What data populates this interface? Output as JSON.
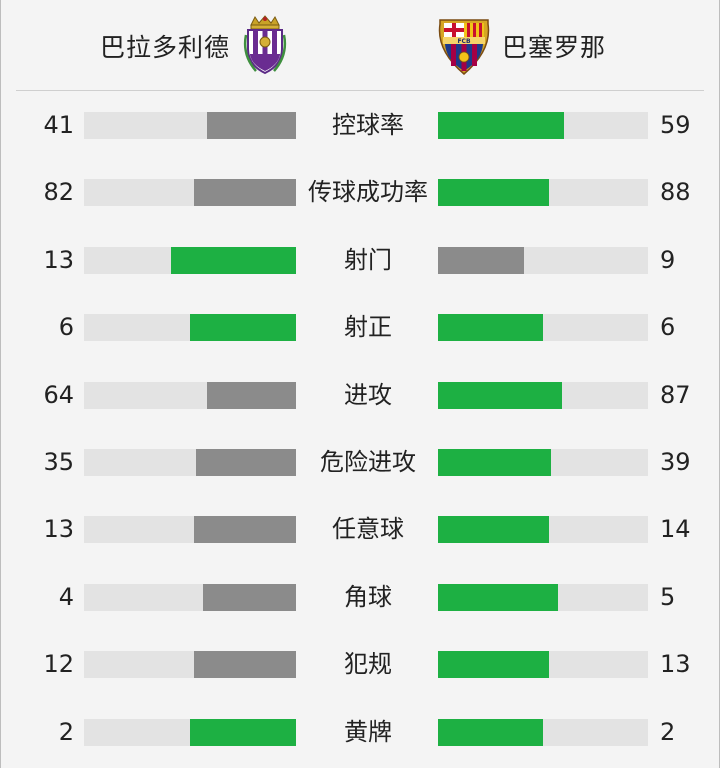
{
  "header": {
    "home_team": "巴拉多利德",
    "away_team": "巴塞罗那",
    "home_crest_icon": "real-valladolid-crest-icon",
    "away_crest_icon": "fc-barcelona-crest-icon",
    "away_crest_text": "FCB"
  },
  "colors": {
    "leader": "#1db043",
    "trailer": "#8b8b8b",
    "track": "#e3e3e3"
  },
  "stats": [
    {
      "label": "控球率",
      "home": "41",
      "away": "59",
      "home_fill": 0.42,
      "away_fill": 0.6,
      "home_color": "gray",
      "away_color": "green"
    },
    {
      "label": "传球成功率",
      "home": "82",
      "away": "88",
      "home_fill": 0.48,
      "away_fill": 0.53,
      "home_color": "gray",
      "away_color": "green"
    },
    {
      "label": "射门",
      "home": "13",
      "away": "9",
      "home_fill": 0.59,
      "away_fill": 0.41,
      "home_color": "green",
      "away_color": "gray"
    },
    {
      "label": "射正",
      "home": "6",
      "away": "6",
      "home_fill": 0.5,
      "away_fill": 0.5,
      "home_color": "green",
      "away_color": "green"
    },
    {
      "label": "进攻",
      "home": "64",
      "away": "87",
      "home_fill": 0.42,
      "away_fill": 0.59,
      "home_color": "gray",
      "away_color": "green"
    },
    {
      "label": "危险进攻",
      "home": "35",
      "away": "39",
      "home_fill": 0.47,
      "away_fill": 0.54,
      "home_color": "gray",
      "away_color": "green"
    },
    {
      "label": "任意球",
      "home": "13",
      "away": "14",
      "home_fill": 0.48,
      "away_fill": 0.53,
      "home_color": "gray",
      "away_color": "green"
    },
    {
      "label": "角球",
      "home": "4",
      "away": "5",
      "home_fill": 0.44,
      "away_fill": 0.57,
      "home_color": "gray",
      "away_color": "green"
    },
    {
      "label": "犯规",
      "home": "12",
      "away": "13",
      "home_fill": 0.48,
      "away_fill": 0.53,
      "home_color": "gray",
      "away_color": "green"
    },
    {
      "label": "黄牌",
      "home": "2",
      "away": "2",
      "home_fill": 0.5,
      "away_fill": 0.5,
      "home_color": "green",
      "away_color": "green"
    }
  ]
}
